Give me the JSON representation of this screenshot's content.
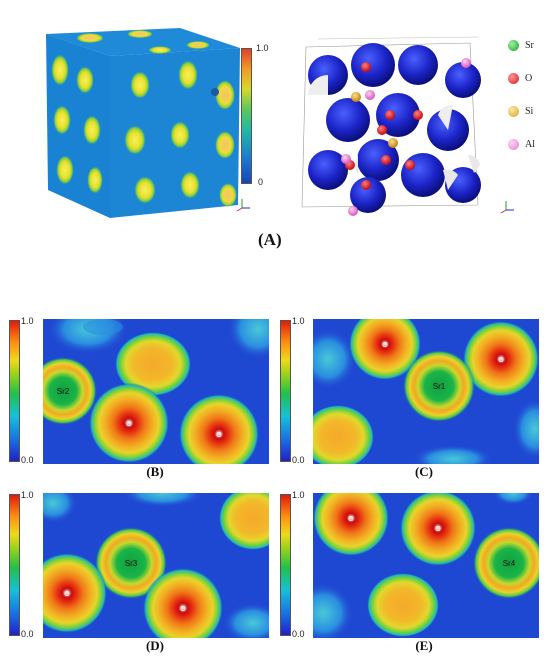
{
  "panel_a": {
    "caption": "(A)",
    "colorbar": {
      "max": "1.0",
      "min": "0"
    },
    "legend": [
      {
        "label": "Sr",
        "color": "#1aa32a"
      },
      {
        "label": "O",
        "color": "#d8141c"
      },
      {
        "label": "Si",
        "color": "#d4a423"
      },
      {
        "label": "Al",
        "color": "#e47ad0"
      }
    ]
  },
  "maps": [
    {
      "caption": "(B)",
      "cbar_max": "1.0",
      "cbar_min": "0.0",
      "labels": [
        "Sr2",
        "O",
        "O"
      ]
    },
    {
      "caption": "(C)",
      "cbar_max": "1.0",
      "cbar_min": "0.0",
      "labels": [
        "O",
        "O",
        "Sr1"
      ]
    },
    {
      "caption": "(D)",
      "cbar_max": "1.0",
      "cbar_min": "0.0",
      "labels": [
        "Sr3",
        "O",
        "O"
      ]
    },
    {
      "caption": "(E)",
      "cbar_max": "1.0",
      "cbar_min": "0.0",
      "labels": [
        "O",
        "O",
        "Sr4"
      ]
    }
  ]
}
